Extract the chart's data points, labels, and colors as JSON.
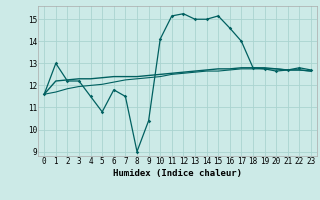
{
  "title": "",
  "xlabel": "Humidex (Indice chaleur)",
  "background_color": "#cceae7",
  "grid_color": "#aad4d0",
  "line_color": "#006060",
  "xlim": [
    -0.5,
    23.5
  ],
  "ylim": [
    8.8,
    15.6
  ],
  "yticks": [
    9,
    10,
    11,
    12,
    13,
    14,
    15
  ],
  "xticks": [
    0,
    1,
    2,
    3,
    4,
    5,
    6,
    7,
    8,
    9,
    10,
    11,
    12,
    13,
    14,
    15,
    16,
    17,
    18,
    19,
    20,
    21,
    22,
    23
  ],
  "line1_x": [
    0,
    1,
    2,
    3,
    4,
    5,
    6,
    7,
    8,
    9,
    10,
    11,
    12,
    13,
    14,
    15,
    16,
    17,
    18,
    19,
    20,
    21,
    22,
    23
  ],
  "line1_y": [
    11.6,
    13.0,
    12.2,
    12.2,
    11.5,
    10.8,
    11.8,
    11.5,
    9.0,
    10.4,
    14.1,
    15.15,
    15.25,
    15.0,
    15.0,
    15.15,
    14.6,
    14.0,
    12.8,
    12.75,
    12.65,
    12.7,
    12.8,
    12.7
  ],
  "line2_x": [
    0,
    1,
    2,
    3,
    4,
    5,
    6,
    7,
    8,
    9,
    10,
    11,
    12,
    13,
    14,
    15,
    16,
    17,
    18,
    19,
    20,
    21,
    22,
    23
  ],
  "line2_y": [
    11.6,
    12.2,
    12.25,
    12.3,
    12.3,
    12.35,
    12.4,
    12.4,
    12.4,
    12.45,
    12.5,
    12.55,
    12.6,
    12.65,
    12.7,
    12.75,
    12.75,
    12.8,
    12.8,
    12.8,
    12.75,
    12.7,
    12.7,
    12.65
  ],
  "line3_x": [
    0,
    1,
    2,
    3,
    4,
    5,
    6,
    7,
    8,
    9,
    10,
    11,
    12,
    13,
    14,
    15,
    16,
    17,
    18,
    19,
    20,
    21,
    22,
    23
  ],
  "line3_y": [
    11.6,
    11.7,
    11.85,
    11.95,
    12.0,
    12.05,
    12.15,
    12.25,
    12.3,
    12.35,
    12.4,
    12.5,
    12.55,
    12.6,
    12.65,
    12.65,
    12.7,
    12.75,
    12.75,
    12.75,
    12.75,
    12.7,
    12.7,
    12.65
  ]
}
